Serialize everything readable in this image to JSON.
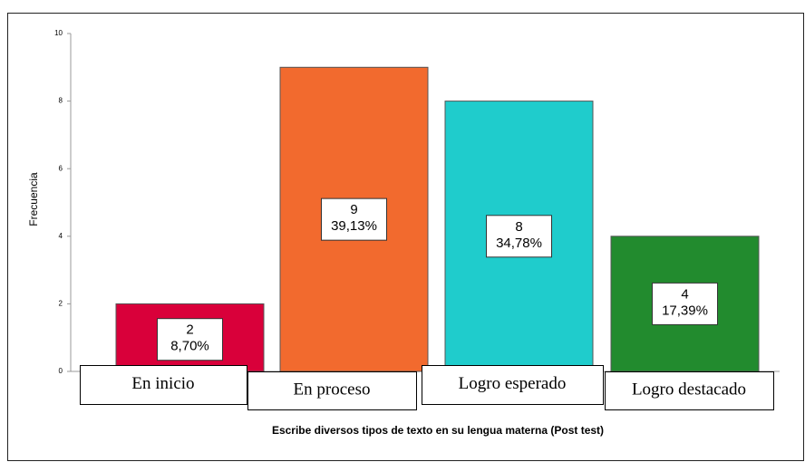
{
  "chart_data": {
    "type": "bar",
    "xlabel": "Escribe diversos tipos de texto en su lengua materna (Post test)",
    "ylabel": "Frecuencia",
    "categories": [
      "En inicio",
      "En proceso",
      "Logro esperado",
      "Logro destacado"
    ],
    "values": [
      2,
      9,
      8,
      4
    ],
    "percentages": [
      8.7,
      39.13,
      34.78,
      17.39
    ],
    "percentage_labels": [
      "8,70%",
      "39,13%",
      "34,78%",
      "17,39%"
    ],
    "colors": [
      "#d9003a",
      "#f26a2e",
      "#1fcccc",
      "#228b2e"
    ],
    "ylim": [
      0,
      10
    ],
    "yticks": [
      0,
      2,
      4,
      6,
      8,
      10
    ],
    "grid": false
  }
}
